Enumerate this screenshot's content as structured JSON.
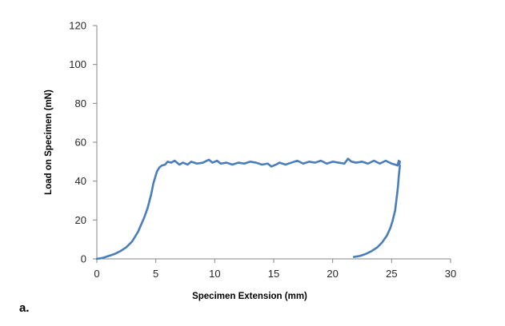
{
  "chart_data": {
    "type": "line",
    "title": "",
    "xlabel": "Specimen Extension (mm)",
    "ylabel": "Load on Specimen (mN)",
    "panel_label": "a.",
    "xlim": [
      0,
      30
    ],
    "ylim": [
      0,
      120
    ],
    "xticks": [
      0,
      5,
      10,
      15,
      20,
      25,
      30
    ],
    "yticks": [
      0,
      20,
      40,
      60,
      80,
      100,
      120
    ],
    "grid": false,
    "legend": "none",
    "line_color": "#4a7ebb",
    "series": [
      {
        "x": [
          0,
          0.5,
          1.0,
          1.5,
          2.0,
          2.5,
          3.0,
          3.5,
          4.0,
          4.3,
          4.6,
          4.8,
          5.0,
          5.1,
          5.2,
          5.3,
          5.5,
          5.8,
          6.0,
          6.3,
          6.6,
          7.0,
          7.3,
          7.7,
          8.0,
          8.5,
          9.0,
          9.5,
          9.8,
          10.2,
          10.5,
          11.0,
          11.5,
          12.0,
          12.5,
          13.0,
          13.5,
          14.0,
          14.5,
          14.8,
          15.2,
          15.5,
          16.0,
          16.5,
          17.0,
          17.5,
          18.0,
          18.5,
          19.0,
          19.5,
          20.0,
          20.5,
          21.0,
          21.3,
          21.6,
          22.0,
          22.5,
          23.0,
          23.5,
          24.0,
          24.5,
          25.0,
          25.3,
          25.5,
          25.6,
          25.65,
          25.7
        ],
        "y": [
          0,
          0.5,
          1.5,
          2.5,
          4,
          6,
          9,
          14,
          21,
          26,
          33,
          39,
          43,
          45,
          46,
          47,
          48,
          48.5,
          50,
          49.5,
          50.5,
          48.5,
          49.5,
          48.5,
          50,
          49,
          49.5,
          51,
          49.5,
          50.5,
          49,
          49.5,
          48.5,
          49.5,
          49,
          50,
          49.5,
          48.5,
          49,
          47.5,
          48.5,
          49.5,
          48.5,
          49.5,
          50.5,
          49,
          50,
          49.5,
          50.5,
          49,
          50,
          49.5,
          49,
          51.5,
          50,
          49.5,
          50,
          49,
          50.5,
          49,
          50.5,
          49,
          48.5,
          48,
          50.5,
          48.5,
          50
        ]
      },
      {
        "x": [
          21.8,
          22.3,
          22.8,
          23.3,
          23.8,
          24.2,
          24.6,
          24.9,
          25.1,
          25.3,
          25.4,
          25.5,
          25.55,
          25.6,
          25.65,
          25.7
        ],
        "y": [
          1,
          1.5,
          2.5,
          4,
          6,
          8.5,
          12,
          16,
          20,
          25,
          30,
          35,
          38,
          42,
          45,
          48
        ]
      }
    ]
  }
}
